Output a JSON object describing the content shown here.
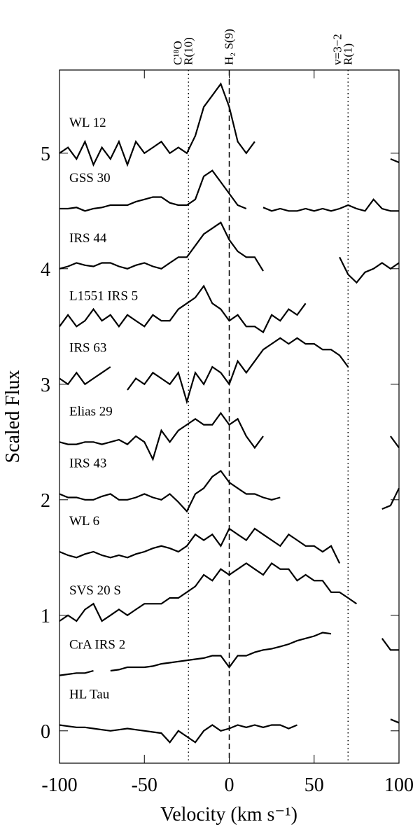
{
  "chart_data": {
    "type": "line",
    "xlabel": "Velocity (km s⁻¹)",
    "ylabel": "Scaled Flux",
    "xlim": [
      -100,
      100
    ],
    "ylim": [
      -0.28,
      5.72
    ],
    "xticks": [
      -100,
      -50,
      0,
      50,
      100
    ],
    "yticks": [
      0,
      1,
      2,
      3,
      4,
      5
    ],
    "x": [
      -100,
      -95,
      -90,
      -85,
      -80,
      -75,
      -70,
      -65,
      -60,
      -55,
      -50,
      -45,
      -40,
      -35,
      -30,
      -25,
      -20,
      -15,
      -10,
      -5,
      0,
      5,
      10,
      15,
      20,
      25,
      30,
      35,
      40,
      45,
      50,
      55,
      60,
      65,
      70,
      75,
      80,
      85,
      90,
      95,
      100
    ],
    "vlines": [
      {
        "x": -24,
        "linestyle": "dotted",
        "label": [
          "C¹⁸O",
          "R(10)"
        ]
      },
      {
        "x": 0,
        "linestyle": "dashed",
        "label": [
          "H₂ S(9)"
        ]
      },
      {
        "x": 70,
        "linestyle": "dotted",
        "label": [
          "v=3−2",
          "R(1)"
        ]
      }
    ],
    "series": [
      {
        "name": "WL 12",
        "color": "#000000",
        "values": [
          5.0,
          5.05,
          4.95,
          5.1,
          4.9,
          5.05,
          4.95,
          5.1,
          4.9,
          5.1,
          5.0,
          5.05,
          5.1,
          5.0,
          5.05,
          5.0,
          5.15,
          5.4,
          5.5,
          5.6,
          5.4,
          5.1,
          5.0,
          5.1,
          null,
          null,
          null,
          null,
          null,
          null,
          null,
          null,
          null,
          null,
          null,
          null,
          null,
          null,
          null,
          4.95,
          4.92
        ]
      },
      {
        "name": "GSS 30",
        "color": "#000000",
        "values": [
          4.52,
          4.52,
          4.53,
          4.5,
          4.52,
          4.53,
          4.55,
          4.55,
          4.55,
          4.58,
          4.6,
          4.62,
          4.62,
          4.57,
          4.55,
          4.55,
          4.6,
          4.8,
          4.85,
          4.75,
          4.65,
          4.55,
          4.52,
          null,
          4.53,
          4.5,
          4.52,
          4.5,
          4.5,
          4.52,
          4.5,
          4.52,
          4.5,
          4.52,
          4.55,
          4.52,
          4.5,
          4.6,
          4.52,
          4.5,
          4.5
        ]
      },
      {
        "name": "IRS 44",
        "color": "#000000",
        "values": [
          4.0,
          4.02,
          4.05,
          4.03,
          4.02,
          4.05,
          4.05,
          4.02,
          4.0,
          4.03,
          4.05,
          4.02,
          4.0,
          4.05,
          4.1,
          4.1,
          4.2,
          4.3,
          4.35,
          4.4,
          4.25,
          4.15,
          4.1,
          4.1,
          3.98,
          null,
          null,
          null,
          null,
          null,
          null,
          null,
          null,
          4.1,
          3.95,
          3.88,
          3.97,
          4.0,
          4.05,
          4.0,
          4.05
        ]
      },
      {
        "name": "L1551 IRS 5",
        "color": "#000000",
        "values": [
          3.5,
          3.6,
          3.5,
          3.55,
          3.65,
          3.55,
          3.6,
          3.5,
          3.6,
          3.55,
          3.5,
          3.6,
          3.55,
          3.55,
          3.65,
          3.7,
          3.75,
          3.85,
          3.7,
          3.65,
          3.55,
          3.6,
          3.5,
          3.5,
          3.45,
          3.6,
          3.55,
          3.65,
          3.6,
          3.7,
          null,
          null,
          null,
          null,
          null,
          null,
          null,
          null,
          null,
          null,
          null
        ]
      },
      {
        "name": "IRS 63",
        "color": "#000000",
        "values": [
          3.05,
          3.0,
          3.1,
          3.0,
          3.05,
          3.1,
          3.15,
          null,
          2.95,
          3.05,
          3.0,
          3.1,
          3.05,
          3.0,
          3.1,
          2.85,
          3.1,
          3.0,
          3.15,
          3.1,
          3.0,
          3.2,
          3.1,
          3.2,
          3.3,
          3.35,
          3.4,
          3.35,
          3.4,
          3.35,
          3.35,
          3.3,
          3.3,
          3.25,
          3.15,
          null,
          null,
          null,
          null,
          null,
          null
        ]
      },
      {
        "name": "Elias 29",
        "color": "#000000",
        "values": [
          2.5,
          2.48,
          2.48,
          2.5,
          2.5,
          2.48,
          2.5,
          2.52,
          2.48,
          2.55,
          2.5,
          2.35,
          2.6,
          2.5,
          2.6,
          2.65,
          2.7,
          2.65,
          2.65,
          2.75,
          2.65,
          2.7,
          2.55,
          2.45,
          2.55,
          null,
          null,
          null,
          null,
          null,
          null,
          null,
          null,
          null,
          null,
          null,
          null,
          null,
          null,
          2.55,
          2.45
        ]
      },
      {
        "name": "IRS 43",
        "color": "#000000",
        "values": [
          2.05,
          2.02,
          2.02,
          2.0,
          2.0,
          2.03,
          2.05,
          2.0,
          2.0,
          2.02,
          2.05,
          2.02,
          2.0,
          2.05,
          1.98,
          1.9,
          2.05,
          2.1,
          2.2,
          2.25,
          2.15,
          2.1,
          2.05,
          2.05,
          2.02,
          2.0,
          2.02,
          null,
          null,
          null,
          null,
          null,
          null,
          null,
          null,
          null,
          null,
          null,
          1.92,
          1.95,
          2.1
        ]
      },
      {
        "name": "WL 6",
        "color": "#000000",
        "values": [
          1.55,
          1.52,
          1.5,
          1.53,
          1.55,
          1.52,
          1.5,
          1.52,
          1.5,
          1.53,
          1.55,
          1.58,
          1.6,
          1.58,
          1.55,
          1.6,
          1.7,
          1.65,
          1.7,
          1.6,
          1.75,
          1.7,
          1.65,
          1.75,
          1.7,
          1.65,
          1.6,
          1.7,
          1.65,
          1.6,
          1.6,
          1.55,
          1.6,
          1.45,
          null,
          null,
          null,
          null,
          null,
          null,
          null
        ]
      },
      {
        "name": "SVS 20 S",
        "color": "#000000",
        "values": [
          0.95,
          1.0,
          0.95,
          1.05,
          1.1,
          0.95,
          1.0,
          1.05,
          1.0,
          1.05,
          1.1,
          1.1,
          1.1,
          1.15,
          1.15,
          1.2,
          1.25,
          1.35,
          1.3,
          1.4,
          1.35,
          1.4,
          1.45,
          1.4,
          1.35,
          1.45,
          1.4,
          1.4,
          1.3,
          1.35,
          1.3,
          1.3,
          1.2,
          1.2,
          1.15,
          1.1,
          null,
          null,
          null,
          null,
          null
        ]
      },
      {
        "name": "CrA IRS 2",
        "color": "#000000",
        "values": [
          0.48,
          0.49,
          0.5,
          0.5,
          0.52,
          null,
          0.52,
          0.53,
          0.55,
          0.55,
          0.55,
          0.56,
          0.58,
          0.59,
          0.6,
          0.61,
          0.62,
          0.63,
          0.65,
          0.65,
          0.55,
          0.65,
          0.65,
          0.68,
          0.7,
          0.71,
          0.73,
          0.75,
          0.78,
          0.8,
          0.82,
          0.85,
          0.84,
          null,
          null,
          null,
          null,
          null,
          0.8,
          0.7,
          0.7
        ]
      },
      {
        "name": "HL Tau",
        "color": "#000000",
        "values": [
          0.05,
          0.04,
          0.03,
          0.03,
          0.02,
          0.01,
          0.0,
          0.01,
          0.02,
          0.01,
          0.0,
          -0.01,
          -0.02,
          -0.1,
          0.0,
          -0.05,
          -0.1,
          0.0,
          0.05,
          0.0,
          0.02,
          0.05,
          0.03,
          0.05,
          0.03,
          0.05,
          0.05,
          0.02,
          0.05,
          null,
          null,
          null,
          null,
          null,
          null,
          null,
          null,
          null,
          null,
          0.1,
          0.07
        ]
      }
    ]
  }
}
